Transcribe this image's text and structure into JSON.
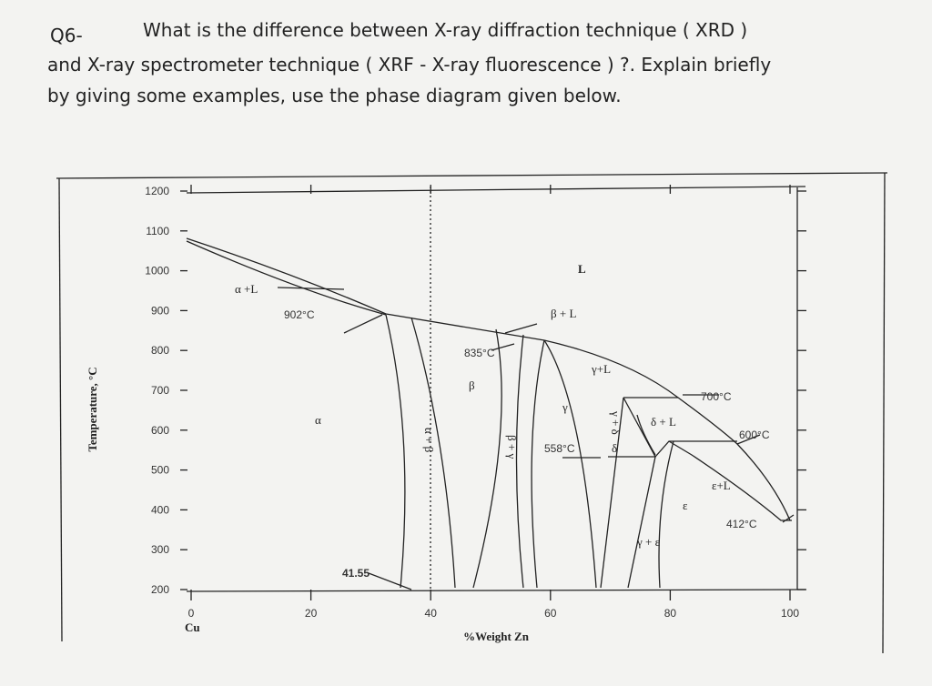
{
  "question": {
    "number": "Q6-",
    "lines": [
      "What is the difference between X-ray diffraction technique ( XRD )",
      "and X-ray spectrometer technique ( XRF - X-ray fluorescence ) ?. Explain briefly",
      "by giving some examples, use the phase diagram given below."
    ]
  },
  "diagram": {
    "y_axis_label": "Temperature, °C",
    "x_axis_label": "%Weight Zn",
    "x_origin_label": "Cu",
    "yticks": [
      "1200",
      "1100",
      "1000",
      "900",
      "800",
      "700",
      "600",
      "500",
      "400",
      "300",
      "200"
    ],
    "xticks": [
      "0",
      "20",
      "40",
      "60",
      "80",
      "100"
    ],
    "labels": {
      "alpha_l": "α +L",
      "t902": "902°C",
      "beta_l": "β + L",
      "liquid": "L",
      "t835": "835°C",
      "beta": "β",
      "gamma_l": "γ+L",
      "t700": "700°C",
      "alpha": "α",
      "gamma": "γ",
      "delta_l": "δ + L",
      "t600": "600°C",
      "t558": "558°C",
      "delta": "δ",
      "epsilon_l": "ε+L",
      "epsilon": "ε",
      "t412": "412°C",
      "gamma_epsilon": "γ + ε",
      "composition": "41.55",
      "alpha_beta": "α + β",
      "beta_gamma": "β + γ",
      "gamma_delta": "γ + δ"
    }
  }
}
